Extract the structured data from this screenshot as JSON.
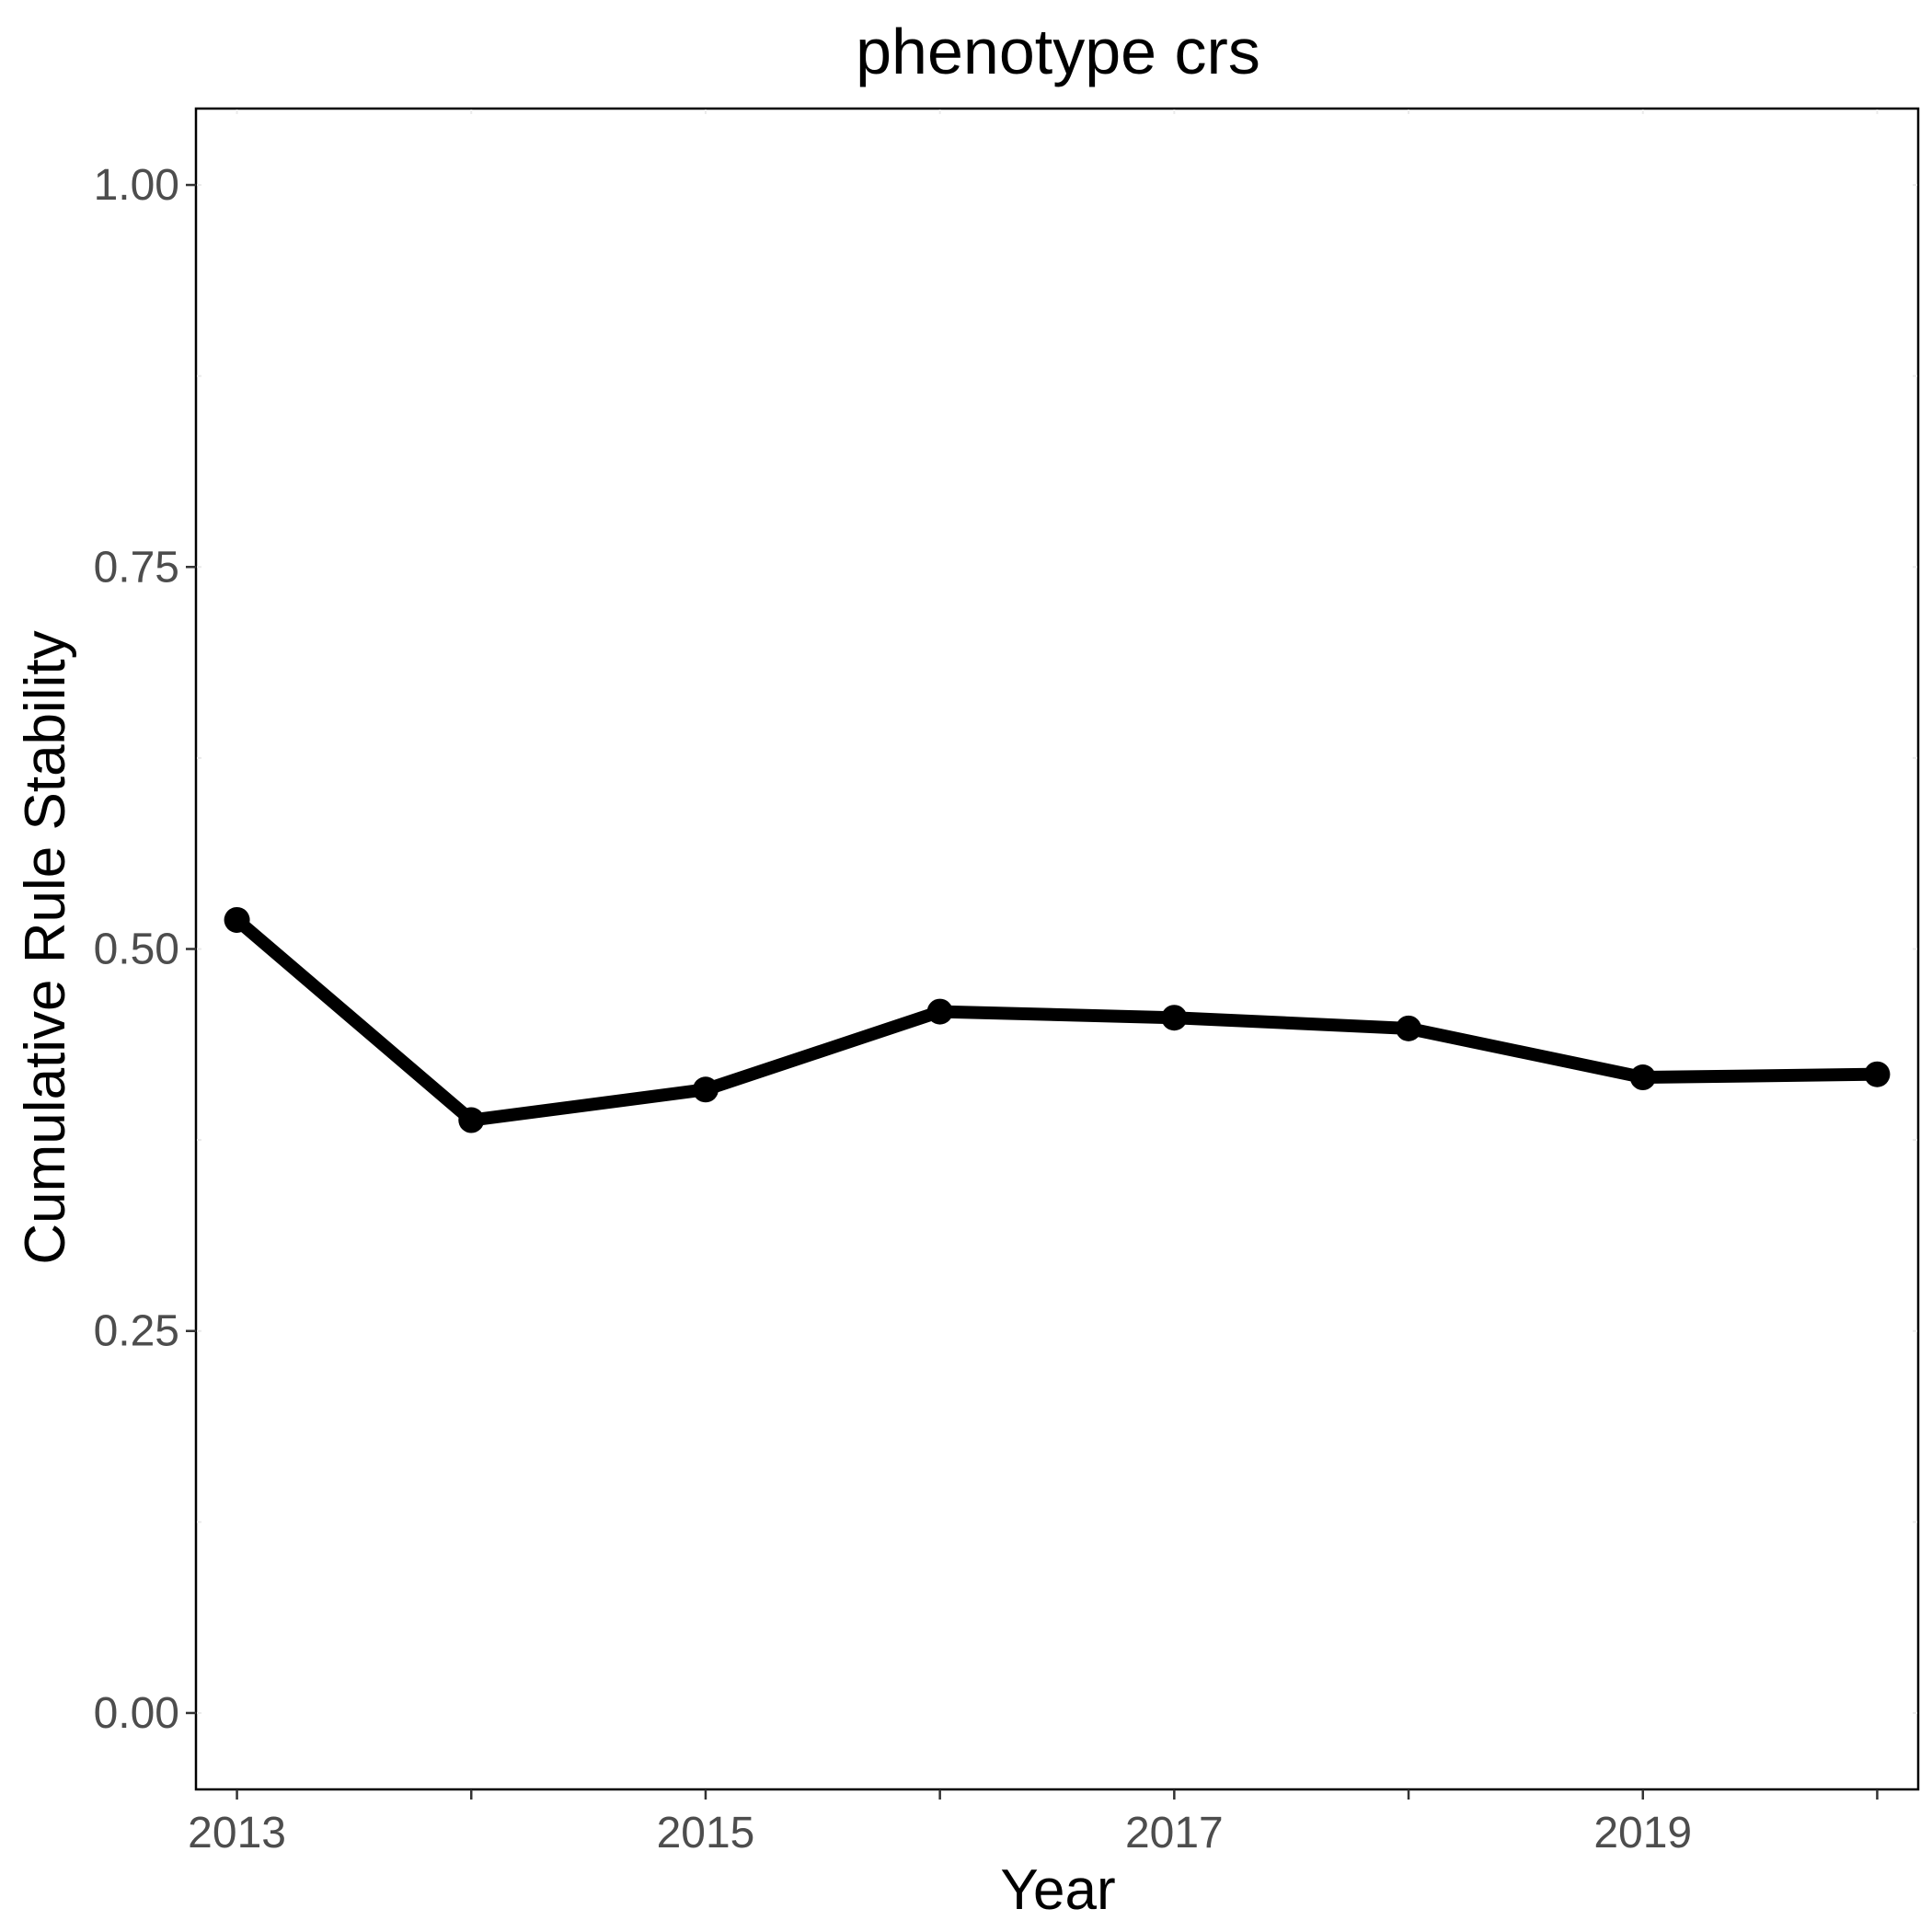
{
  "chart_data": {
    "type": "line",
    "title": "phenotype crs",
    "xlabel": "Year",
    "ylabel": "Cumulative Rule Stability",
    "x": [
      2013,
      2014,
      2015,
      2016,
      2017,
      2018,
      2019,
      2020
    ],
    "series": [
      {
        "values": [
          0.519,
          0.388,
          0.408,
          0.459,
          0.455,
          0.448,
          0.416,
          0.418
        ]
      }
    ],
    "xlim": [
      2012.825,
      2020.175
    ],
    "ylim": [
      -0.05,
      1.05
    ],
    "xticks": [
      2013,
      2015,
      2017,
      2019
    ],
    "xtick_labels": [
      "2013",
      "2015",
      "2017",
      "2019"
    ],
    "yticks": [
      0,
      0.25,
      0.5,
      0.75,
      1
    ],
    "ytick_labels": [
      "0.00",
      "0.25",
      "0.50",
      "0.75",
      "1.00"
    ],
    "grid": false,
    "legend": "none",
    "colors": {
      "line": "#000000",
      "tick_text": "#4d4d4d",
      "background": "#ffffff"
    }
  }
}
